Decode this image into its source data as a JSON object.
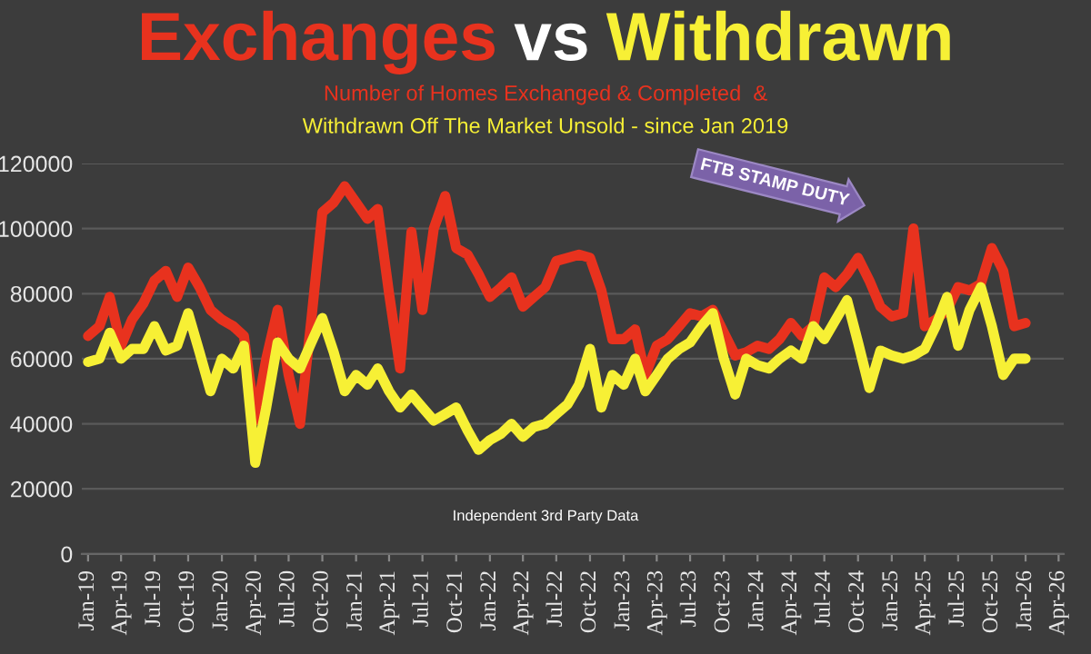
{
  "chart_data": {
    "type": "line",
    "title": "Exchanges vs Withdrawn",
    "subtitle": "Number of Homes Exchanged & Completed  &\nWithdrawn Off The Market Unsold - since Jan 2019",
    "x": [
      "2019-01",
      "2019-02",
      "2019-03",
      "2019-04",
      "2019-05",
      "2019-06",
      "2019-07",
      "2019-08",
      "2019-09",
      "2019-10",
      "2019-11",
      "2019-12",
      "2020-01",
      "2020-02",
      "2020-03",
      "2020-04",
      "2020-05",
      "2020-06",
      "2020-07",
      "2020-08",
      "2020-09",
      "2020-10",
      "2020-11",
      "2020-12",
      "2021-01",
      "2021-02",
      "2021-03",
      "2021-04",
      "2021-05",
      "2021-06",
      "2021-07",
      "2021-08",
      "2021-09",
      "2021-10",
      "2021-11",
      "2021-12",
      "2022-01",
      "2022-02",
      "2022-03",
      "2022-04",
      "2022-05",
      "2022-06",
      "2022-07",
      "2022-08",
      "2022-09",
      "2022-10",
      "2022-11",
      "2022-12",
      "2023-01",
      "2023-02",
      "2023-03",
      "2023-04",
      "2023-05",
      "2023-06",
      "2023-07",
      "2023-08",
      "2023-09",
      "2023-10",
      "2023-11",
      "2023-12",
      "2024-01",
      "2024-02",
      "2024-03",
      "2024-04",
      "2024-05",
      "2024-06",
      "2024-07",
      "2024-08",
      "2024-09",
      "2024-10",
      "2024-11",
      "2024-12",
      "2025-01",
      "2025-02",
      "2025-03",
      "2025-04",
      "2025-05",
      "2025-06",
      "2025-07",
      "2025-08",
      "2025-09",
      "2025-10",
      "2025-11",
      "2025-12",
      "2026-01"
    ],
    "series": [
      {
        "color": "#e8321e",
        "values": [
          67000,
          70000,
          79000,
          64000,
          72000,
          77000,
          84000,
          87000,
          79000,
          88000,
          82000,
          75000,
          72000,
          70000,
          67000,
          41000,
          60000,
          75000,
          55000,
          40000,
          72000,
          105000,
          108000,
          113000,
          108000,
          103000,
          106000,
          80000,
          57000,
          99000,
          75000,
          100000,
          110000,
          94000,
          92000,
          86000,
          79000,
          82000,
          85000,
          76000,
          79000,
          82000,
          90000,
          91000,
          92000,
          91000,
          81000,
          66000,
          66000,
          69000,
          55000,
          64000,
          66000,
          70000,
          74000,
          73000,
          75000,
          68000,
          61000,
          62000,
          64000,
          63000,
          66000,
          71000,
          67000,
          70000,
          85000,
          82000,
          86000,
          91000,
          84000,
          76000,
          73000,
          74000,
          100000,
          70000,
          72000,
          75000,
          82000,
          81000,
          83000,
          94000,
          87000,
          70000,
          71000
        ]
      },
      {
        "color": "#f7f035",
        "values": [
          59000,
          60000,
          68000,
          60000,
          63000,
          63000,
          70000,
          62500,
          64000,
          74000,
          62000,
          50000,
          60000,
          57000,
          64000,
          28000,
          45000,
          65000,
          60000,
          57000,
          65000,
          72500,
          62000,
          50000,
          55000,
          52000,
          57000,
          50000,
          45000,
          49000,
          45000,
          41000,
          43000,
          45000,
          38000,
          32000,
          35000,
          37000,
          40000,
          36000,
          39000,
          40000,
          43000,
          46000,
          52000,
          63000,
          45000,
          55000,
          52000,
          60000,
          50000,
          55000,
          60000,
          63000,
          65000,
          70000,
          74000,
          60000,
          49000,
          60000,
          58000,
          57000,
          60000,
          62500,
          60000,
          70000,
          66000,
          72000,
          78000,
          65000,
          51000,
          62500,
          61000,
          60000,
          61000,
          63000,
          70000,
          79000,
          64000,
          75000,
          82000,
          70000,
          55000,
          60000,
          60000
        ]
      }
    ],
    "xlim": [
      "2018-12-15",
      "2026-04-15"
    ],
    "xticks": [
      {
        "value": "2019-01",
        "label": "Jan-19"
      },
      {
        "value": "2019-04",
        "label": "Apr-19"
      },
      {
        "value": "2019-07",
        "label": "Jul-19"
      },
      {
        "value": "2019-10",
        "label": "Oct-19"
      },
      {
        "value": "2020-01",
        "label": "Jan-20"
      },
      {
        "value": "2020-04",
        "label": "Apr-20"
      },
      {
        "value": "2020-07",
        "label": "Jul-20"
      },
      {
        "value": "2020-10",
        "label": "Oct-20"
      },
      {
        "value": "2021-01",
        "label": "Jan-21"
      },
      {
        "value": "2021-04",
        "label": "Apr-21"
      },
      {
        "value": "2021-07",
        "label": "Jul-21"
      },
      {
        "value": "2021-10",
        "label": "Oct-21"
      },
      {
        "value": "2022-01",
        "label": "Jan-22"
      },
      {
        "value": "2022-04",
        "label": "Apr-22"
      },
      {
        "value": "2022-07",
        "label": "Jul-22"
      },
      {
        "value": "2022-10",
        "label": "Oct-22"
      },
      {
        "value": "2023-01",
        "label": "Jan-23"
      },
      {
        "value": "2023-04",
        "label": "Apr-23"
      },
      {
        "value": "2023-07",
        "label": "Jul-23"
      },
      {
        "value": "2023-10",
        "label": "Oct-23"
      },
      {
        "value": "2024-01",
        "label": "Jan-24"
      },
      {
        "value": "2024-04",
        "label": "Apr-24"
      },
      {
        "value": "2024-07",
        "label": "Jul-24"
      },
      {
        "value": "2024-10",
        "label": "Oct-24"
      },
      {
        "value": "2025-01",
        "label": "Jan-25"
      },
      {
        "value": "2025-04",
        "label": "Apr-25"
      },
      {
        "value": "2025-07",
        "label": "Jul-25"
      },
      {
        "value": "2025-10",
        "label": "Oct-25"
      },
      {
        "value": "2026-01",
        "label": "Jan-26"
      },
      {
        "value": "2026-04",
        "label": "Apr-26"
      }
    ],
    "ylim": [
      0,
      120000
    ],
    "yticks": [
      0,
      20000,
      40000,
      60000,
      80000,
      100000,
      120000
    ],
    "grid": "y",
    "marker": "none",
    "line_style": "solid",
    "annotations": [
      "FTB STAMP DUTY",
      "Independent 3rd Party Data"
    ]
  }
}
